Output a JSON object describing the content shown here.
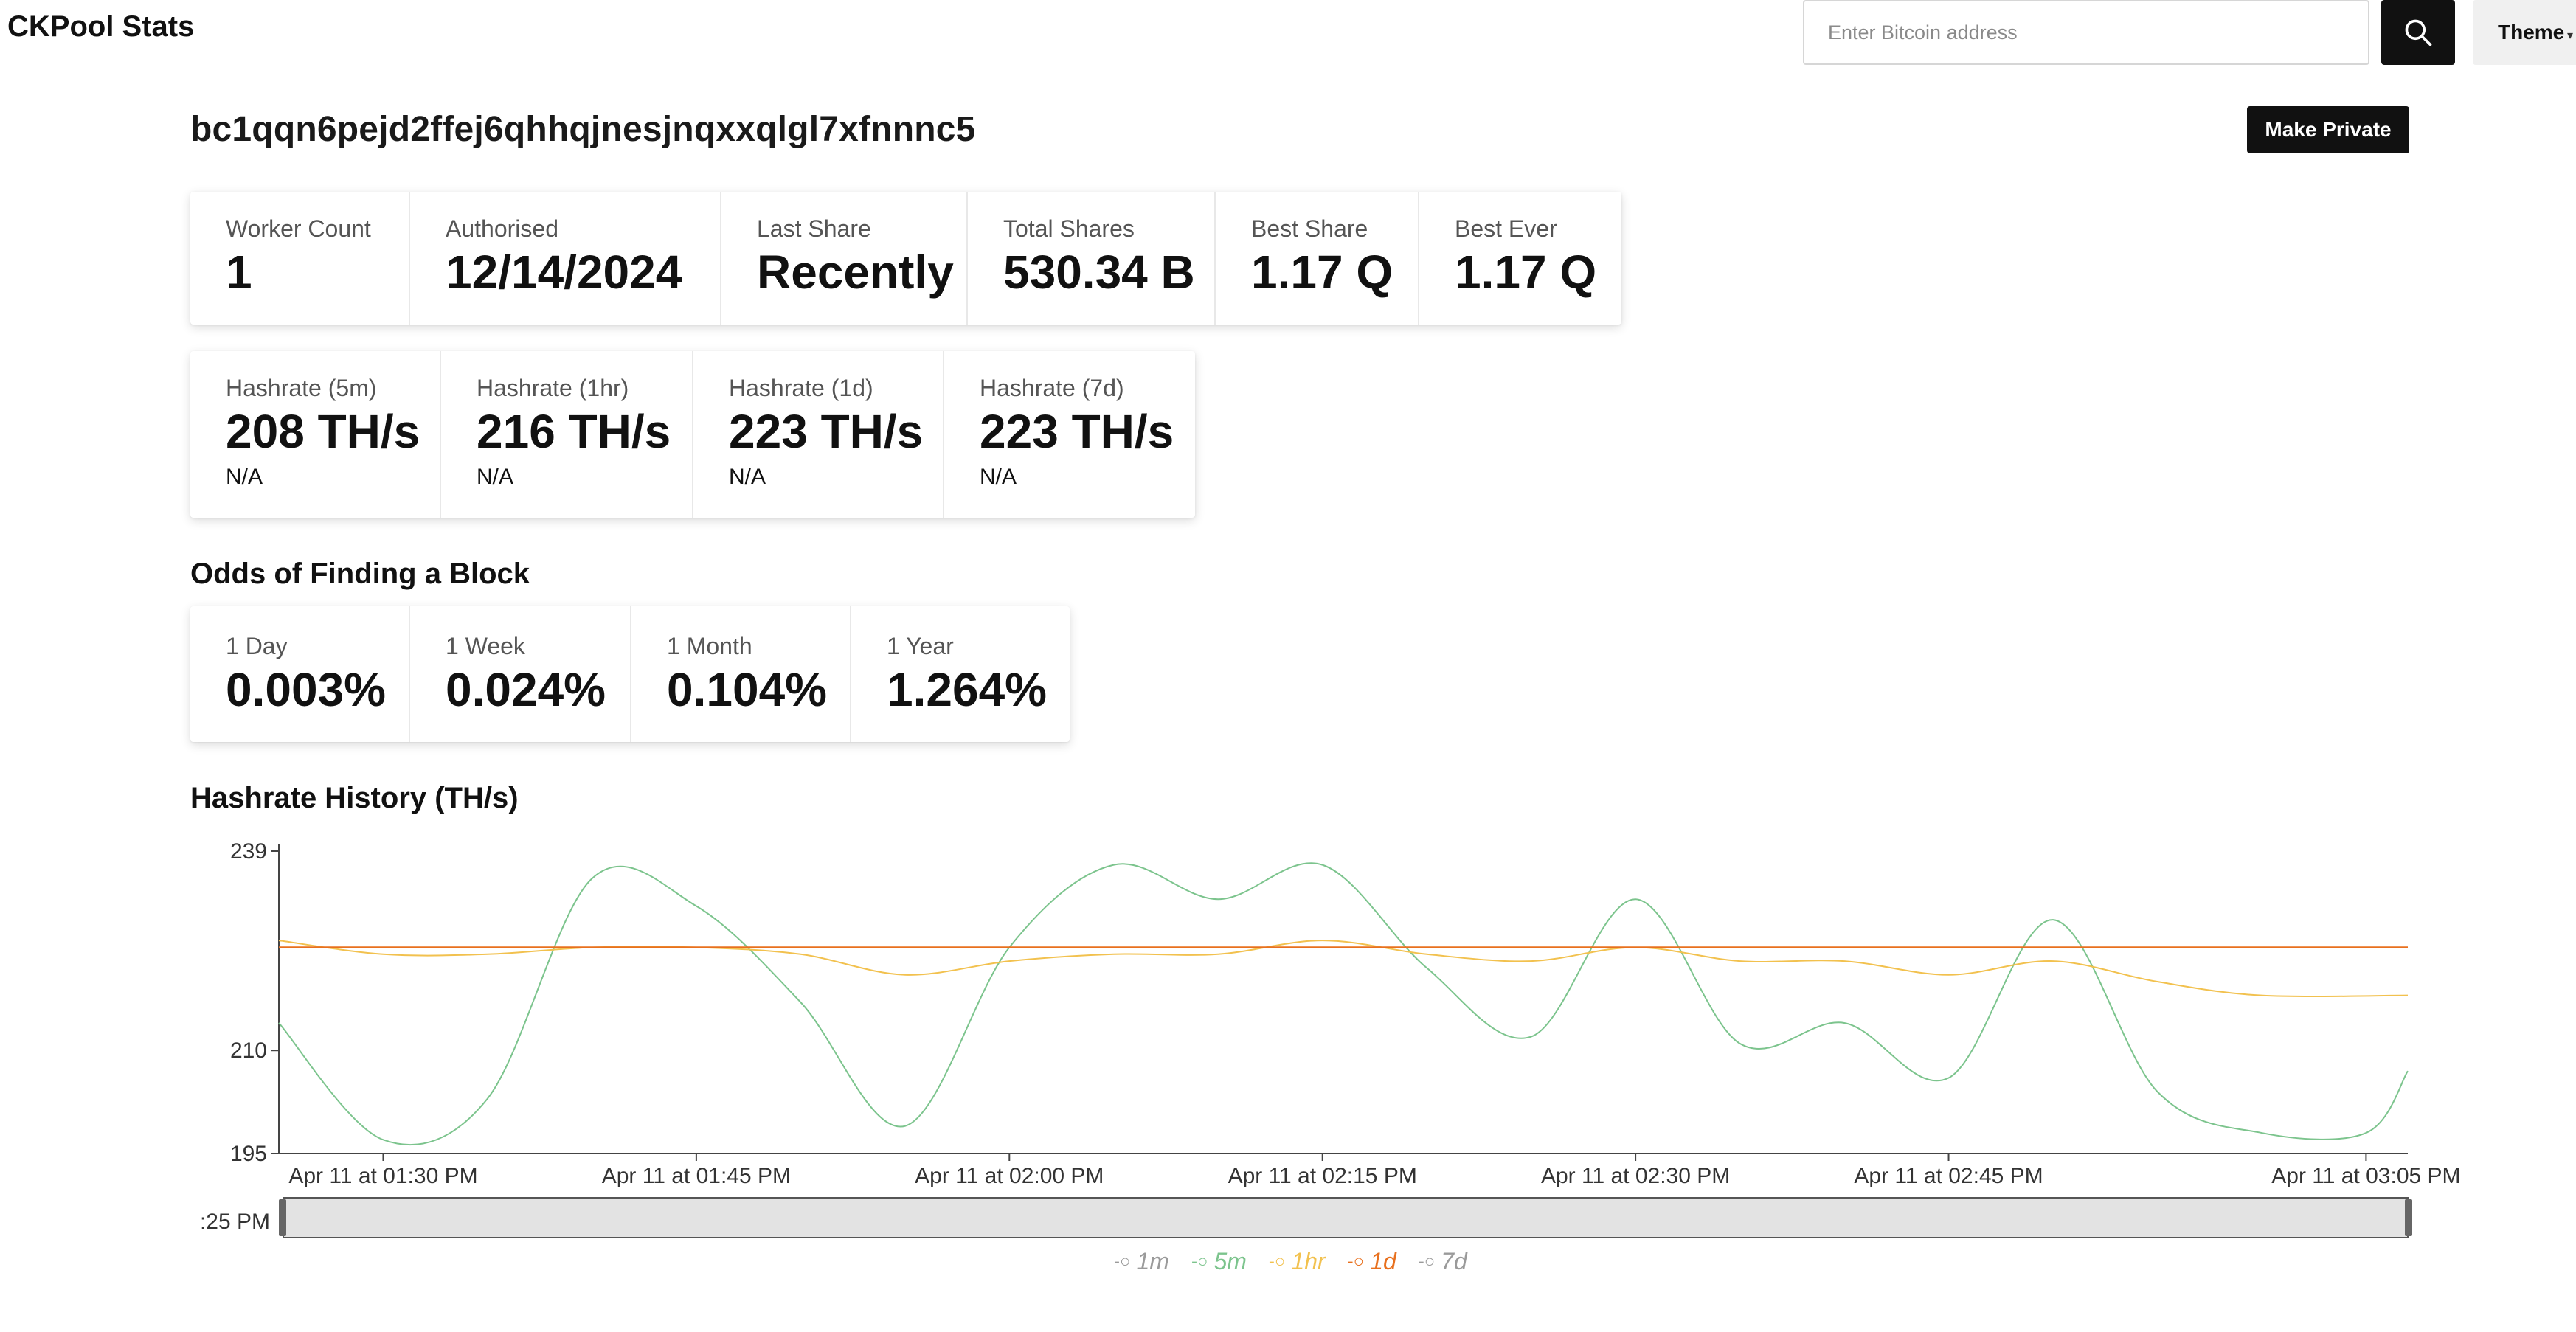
{
  "header": {
    "brand": "CKPool Stats",
    "search_placeholder": "Enter Bitcoin address",
    "search_icon": "search-icon",
    "theme_label": "Theme"
  },
  "address": "bc1qqn6pejd2ffej6qhhqjnesjnqxxqlgl7xfnnnc5",
  "make_private_label": "Make Private",
  "stats": [
    {
      "label": "Worker Count",
      "value": "1"
    },
    {
      "label": "Authorised",
      "value": "12/14/2024"
    },
    {
      "label": "Last Share",
      "value": "Recently"
    },
    {
      "label": "Total Shares",
      "value": "530.34 B"
    },
    {
      "label": "Best Share",
      "value": "1.17 Q"
    },
    {
      "label": "Best Ever",
      "value": "1.17 Q"
    }
  ],
  "hashrates": [
    {
      "label": "Hashrate (5m)",
      "value": "208 TH/s",
      "sub": "N/A"
    },
    {
      "label": "Hashrate (1hr)",
      "value": "216 TH/s",
      "sub": "N/A"
    },
    {
      "label": "Hashrate (1d)",
      "value": "223 TH/s",
      "sub": "N/A"
    },
    {
      "label": "Hashrate (7d)",
      "value": "223 TH/s",
      "sub": "N/A"
    }
  ],
  "odds": {
    "title": "Odds of Finding a Block",
    "items": [
      {
        "label": "1 Day",
        "value": "0.003%"
      },
      {
        "label": "1 Week",
        "value": "0.024%"
      },
      {
        "label": "1 Month",
        "value": "0.104%"
      },
      {
        "label": "1 Year",
        "value": "1.264%"
      }
    ]
  },
  "history_title": "Hashrate History (TH/s)",
  "range_selector_label": ":25 PM",
  "colors": {
    "s1m": "#9a9a9a",
    "s5m": "#7cc48d",
    "s1hr": "#f2c14e",
    "s1d": "#e8701e",
    "s7d": "#9a9a9a",
    "text": "#111111"
  },
  "chart_data": {
    "type": "line",
    "title": "Hashrate History (TH/s)",
    "yticks": [
      195,
      210,
      239
    ],
    "ylim": [
      195,
      239
    ],
    "xlim_minutes": [
      1285,
      1387
    ],
    "x_tick_labels": [
      "Apr 11 at 01:30 PM",
      "Apr 11 at 01:45 PM",
      "Apr 11 at 02:00 PM",
      "Apr 11 at 02:15 PM",
      "Apr 11 at 02:30 PM",
      "Apr 11 at 02:45 PM",
      "Apr 11 at 03:05 PM"
    ],
    "x_tick_minutes": [
      1290,
      1305,
      1320,
      1335,
      1350,
      1365,
      1385
    ],
    "legend_placement": "bottom-center",
    "series": [
      {
        "name": "1m",
        "visible": false,
        "x": [],
        "y": []
      },
      {
        "name": "5m",
        "visible": true,
        "x": [
          1285,
          1290,
          1295,
          1300,
          1305,
          1310,
          1315,
          1320,
          1325,
          1330,
          1335,
          1340,
          1345,
          1350,
          1355,
          1360,
          1365,
          1370,
          1375,
          1380,
          1385,
          1387
        ],
        "y": [
          214,
          197,
          203,
          235,
          231,
          217,
          199,
          225,
          237,
          232,
          237,
          222,
          212,
          232,
          211,
          214,
          206,
          229,
          204,
          198,
          198,
          207
        ]
      },
      {
        "name": "1hr",
        "visible": true,
        "x": [
          1285,
          1290,
          1295,
          1300,
          1305,
          1310,
          1315,
          1320,
          1325,
          1330,
          1335,
          1340,
          1345,
          1350,
          1355,
          1360,
          1365,
          1370,
          1375,
          1380,
          1387
        ],
        "y": [
          226,
          224,
          224,
          225,
          225,
          224,
          221,
          223,
          224,
          224,
          226,
          224,
          223,
          225,
          223,
          223,
          221,
          223,
          220,
          218,
          218
        ]
      },
      {
        "name": "1d",
        "visible": true,
        "x": [
          1285,
          1287,
          1387
        ],
        "y": [
          225,
          225,
          225
        ]
      },
      {
        "name": "7d",
        "visible": false,
        "x": [],
        "y": []
      }
    ]
  }
}
